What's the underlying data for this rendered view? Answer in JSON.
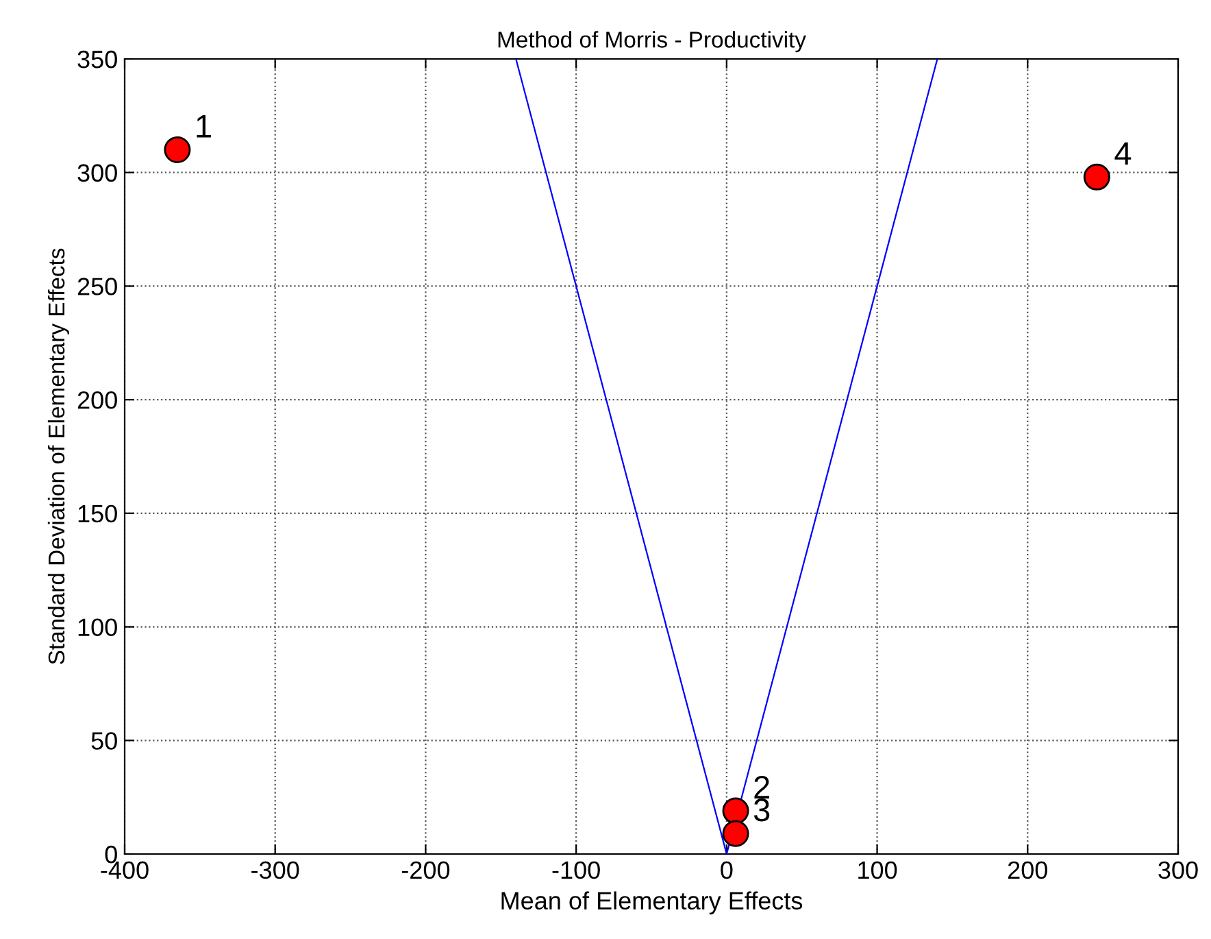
{
  "chart_data": {
    "type": "scatter",
    "title": "Method of Morris - Productivity",
    "xlabel": "Mean of Elementary Effects",
    "ylabel": "Standard Deviation of Elementary Effects",
    "series": [
      {
        "color": "#ff0000",
        "x": [
          -365,
          6,
          6,
          246
        ],
        "values": [
          310,
          19,
          9,
          298
        ],
        "marker": "circle"
      },
      {
        "type": "line",
        "color": "#0000ff",
        "x": [
          -140,
          0,
          140
        ],
        "values": [
          350,
          0,
          350
        ],
        "marker": "none",
        "line_style": "solid"
      }
    ],
    "annotations": [
      {
        "text": "1",
        "x": -365,
        "y": 310
      },
      {
        "text": "2",
        "x": 6,
        "y": 19
      },
      {
        "text": "3",
        "x": 6,
        "y": 9
      },
      {
        "text": "4",
        "x": 246,
        "y": 298
      }
    ],
    "xlim": [
      -400,
      300
    ],
    "xticks": [
      -400,
      -300,
      -200,
      -100,
      0,
      100,
      200,
      300
    ],
    "ylim": [
      0,
      350
    ],
    "yticks": [
      0,
      50,
      100,
      150,
      200,
      250,
      300,
      350
    ],
    "grid": true
  }
}
